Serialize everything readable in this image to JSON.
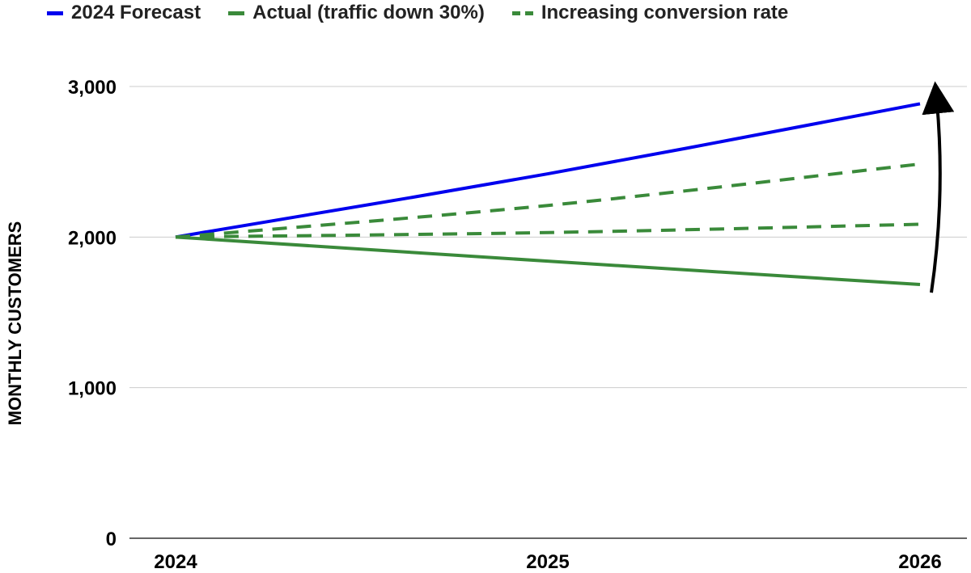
{
  "chart_data": {
    "type": "line",
    "title": "",
    "xlabel": "",
    "ylabel": "MONTHLY CUSTOMERS",
    "x": [
      "2024",
      "2025",
      "2026"
    ],
    "ylim": [
      0,
      3000
    ],
    "yticks": [
      0,
      1000,
      2000,
      3000
    ],
    "ytick_labels": [
      "0",
      "1,000",
      "2,000",
      "3,000"
    ],
    "grid": true,
    "legend_position": "top",
    "series": [
      {
        "name": "2024 Forecast",
        "color": "#0000ee",
        "style": "solid",
        "values": [
          2000,
          2420,
          2885
        ]
      },
      {
        "name": "Actual (traffic down 30%)",
        "color": "#3a8a3a",
        "style": "solid",
        "values": [
          2000,
          1840,
          1685
        ]
      },
      {
        "name": "Increasing conversion rate",
        "color": "#3a8a3a",
        "style": "dashed",
        "values": [
          2000,
          2210,
          2485
        ]
      },
      {
        "name": "Increasing conversion rate",
        "color": "#3a8a3a",
        "style": "dashed",
        "values": [
          2000,
          2030,
          2085
        ]
      }
    ],
    "annotation_arrow": {
      "from_series": 1,
      "to_series": 0,
      "at_x": "2026",
      "color": "#000000"
    }
  }
}
